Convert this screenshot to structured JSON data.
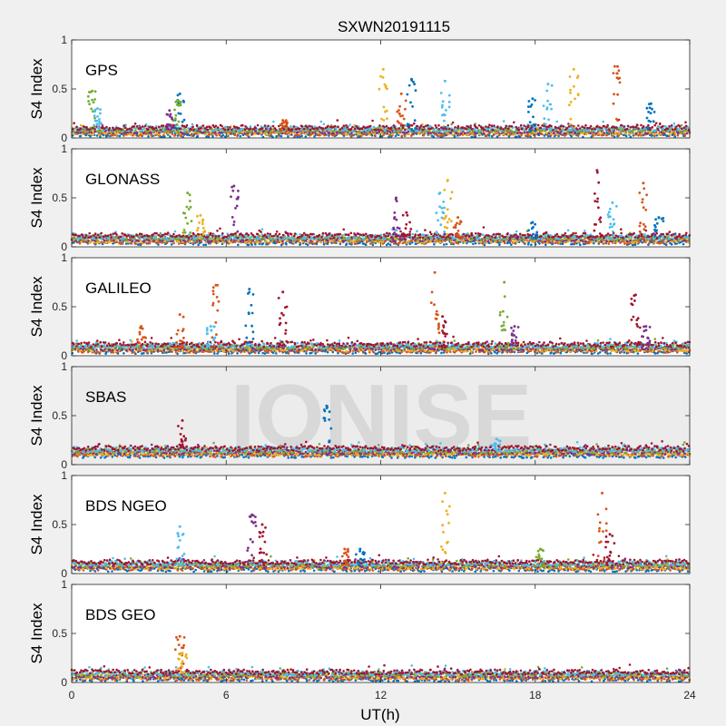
{
  "figure": {
    "title": "SXWN20191115",
    "xlabel": "UT(h)",
    "watermark": "IONISE"
  },
  "chart_data": [
    {
      "type": "scatter",
      "panel_label": "GPS",
      "ylabel": "S4 Index",
      "xlim": [
        0,
        24
      ],
      "ylim": [
        0,
        1
      ],
      "yticks": [
        0,
        0.5,
        1
      ],
      "baseline": 0.07,
      "spikes": [
        {
          "x": 0.8,
          "peak": 0.48,
          "color": "#77ac30"
        },
        {
          "x": 1.0,
          "peak": 0.3,
          "color": "#4dbeee"
        },
        {
          "x": 4.2,
          "peak": 0.45,
          "color": "#0072bd"
        },
        {
          "x": 4.1,
          "peak": 0.38,
          "color": "#77ac30"
        },
        {
          "x": 3.8,
          "peak": 0.28,
          "color": "#7e2f8e"
        },
        {
          "x": 8.2,
          "peak": 0.18,
          "color": "#d95319"
        },
        {
          "x": 12.1,
          "peak": 0.7,
          "color": "#edb120"
        },
        {
          "x": 12.8,
          "peak": 0.45,
          "color": "#d95319"
        },
        {
          "x": 13.2,
          "peak": 0.6,
          "color": "#0072bd"
        },
        {
          "x": 14.5,
          "peak": 0.58,
          "color": "#4dbeee"
        },
        {
          "x": 17.9,
          "peak": 0.4,
          "color": "#0072bd"
        },
        {
          "x": 18.5,
          "peak": 0.55,
          "color": "#4dbeee"
        },
        {
          "x": 19.5,
          "peak": 0.7,
          "color": "#edb120"
        },
        {
          "x": 21.2,
          "peak": 0.73,
          "color": "#d95319"
        },
        {
          "x": 22.5,
          "peak": 0.35,
          "color": "#0072bd"
        }
      ]
    },
    {
      "type": "scatter",
      "panel_label": "GLONASS",
      "ylabel": "S4 Index",
      "xlim": [
        0,
        24
      ],
      "ylim": [
        0,
        1
      ],
      "yticks": [
        0,
        0.5,
        1
      ],
      "baseline": 0.08,
      "spikes": [
        {
          "x": 4.5,
          "peak": 0.55,
          "color": "#77ac30"
        },
        {
          "x": 5.0,
          "peak": 0.32,
          "color": "#edb120"
        },
        {
          "x": 6.3,
          "peak": 0.62,
          "color": "#7e2f8e"
        },
        {
          "x": 12.6,
          "peak": 0.5,
          "color": "#7e2f8e"
        },
        {
          "x": 13.0,
          "peak": 0.35,
          "color": "#a2142f"
        },
        {
          "x": 14.6,
          "peak": 0.68,
          "color": "#edb120"
        },
        {
          "x": 14.3,
          "peak": 0.55,
          "color": "#4dbeee"
        },
        {
          "x": 15.0,
          "peak": 0.3,
          "color": "#d95319"
        },
        {
          "x": 17.9,
          "peak": 0.25,
          "color": "#0072bd"
        },
        {
          "x": 20.4,
          "peak": 0.78,
          "color": "#a2142f"
        },
        {
          "x": 21.0,
          "peak": 0.45,
          "color": "#4dbeee"
        },
        {
          "x": 22.2,
          "peak": 0.65,
          "color": "#d95319"
        },
        {
          "x": 22.8,
          "peak": 0.3,
          "color": "#0072bd"
        }
      ]
    },
    {
      "type": "scatter",
      "panel_label": "GALILEO",
      "ylabel": "S4 Index",
      "xlim": [
        0,
        24
      ],
      "ylim": [
        0,
        1
      ],
      "yticks": [
        0,
        0.5,
        1
      ],
      "baseline": 0.08,
      "spikes": [
        {
          "x": 2.7,
          "peak": 0.3,
          "color": "#d95319"
        },
        {
          "x": 4.2,
          "peak": 0.42,
          "color": "#d95319"
        },
        {
          "x": 5.6,
          "peak": 0.72,
          "color": "#d95319"
        },
        {
          "x": 5.4,
          "peak": 0.3,
          "color": "#4dbeee"
        },
        {
          "x": 6.9,
          "peak": 0.68,
          "color": "#0072bd"
        },
        {
          "x": 8.2,
          "peak": 0.65,
          "color": "#a2142f"
        },
        {
          "x": 14.1,
          "peak": 0.85,
          "color": "#d95319"
        },
        {
          "x": 14.4,
          "peak": 0.4,
          "color": "#a2142f"
        },
        {
          "x": 16.8,
          "peak": 0.75,
          "color": "#77ac30"
        },
        {
          "x": 17.2,
          "peak": 0.3,
          "color": "#7e2f8e"
        },
        {
          "x": 21.9,
          "peak": 0.62,
          "color": "#a2142f"
        },
        {
          "x": 22.3,
          "peak": 0.3,
          "color": "#7e2f8e"
        }
      ]
    },
    {
      "type": "scatter",
      "panel_label": "SBAS",
      "ylabel": "S4 Index",
      "xlim": [
        0,
        24
      ],
      "ylim": [
        0,
        1
      ],
      "yticks": [
        0,
        0.5,
        1
      ],
      "baseline": 0.13,
      "spikes": [
        {
          "x": 4.3,
          "peak": 0.45,
          "color": "#a2142f"
        },
        {
          "x": 9.9,
          "peak": 0.6,
          "color": "#0072bd"
        },
        {
          "x": 16.5,
          "peak": 0.26,
          "color": "#4dbeee"
        }
      ]
    },
    {
      "type": "scatter",
      "panel_label": "BDS NGEO",
      "ylabel": "S4 Index",
      "xlim": [
        0,
        24
      ],
      "ylim": [
        0,
        1
      ],
      "yticks": [
        0,
        0.5,
        1
      ],
      "baseline": 0.08,
      "spikes": [
        {
          "x": 4.2,
          "peak": 0.48,
          "color": "#4dbeee"
        },
        {
          "x": 7.0,
          "peak": 0.6,
          "color": "#7e2f8e"
        },
        {
          "x": 7.4,
          "peak": 0.5,
          "color": "#a2142f"
        },
        {
          "x": 10.6,
          "peak": 0.25,
          "color": "#d95319"
        },
        {
          "x": 11.2,
          "peak": 0.25,
          "color": "#0072bd"
        },
        {
          "x": 14.5,
          "peak": 0.82,
          "color": "#edb120"
        },
        {
          "x": 18.2,
          "peak": 0.25,
          "color": "#77ac30"
        },
        {
          "x": 20.6,
          "peak": 0.82,
          "color": "#d95319"
        },
        {
          "x": 20.9,
          "peak": 0.4,
          "color": "#a2142f"
        }
      ]
    },
    {
      "type": "scatter",
      "panel_label": "BDS GEO",
      "ylabel": "S4 Index",
      "xlim": [
        0,
        24
      ],
      "ylim": [
        0,
        1
      ],
      "yticks": [
        0,
        0.5,
        1
      ],
      "xticks": [
        0,
        6,
        12,
        18,
        24
      ],
      "baseline": 0.07,
      "spikes": [
        {
          "x": 4.2,
          "peak": 0.47,
          "color": "#d95319"
        },
        {
          "x": 4.3,
          "peak": 0.3,
          "color": "#edb120"
        }
      ]
    }
  ],
  "series_colors": [
    "#0072bd",
    "#d95319",
    "#edb120",
    "#7e2f8e",
    "#77ac30",
    "#4dbeee",
    "#a2142f"
  ]
}
